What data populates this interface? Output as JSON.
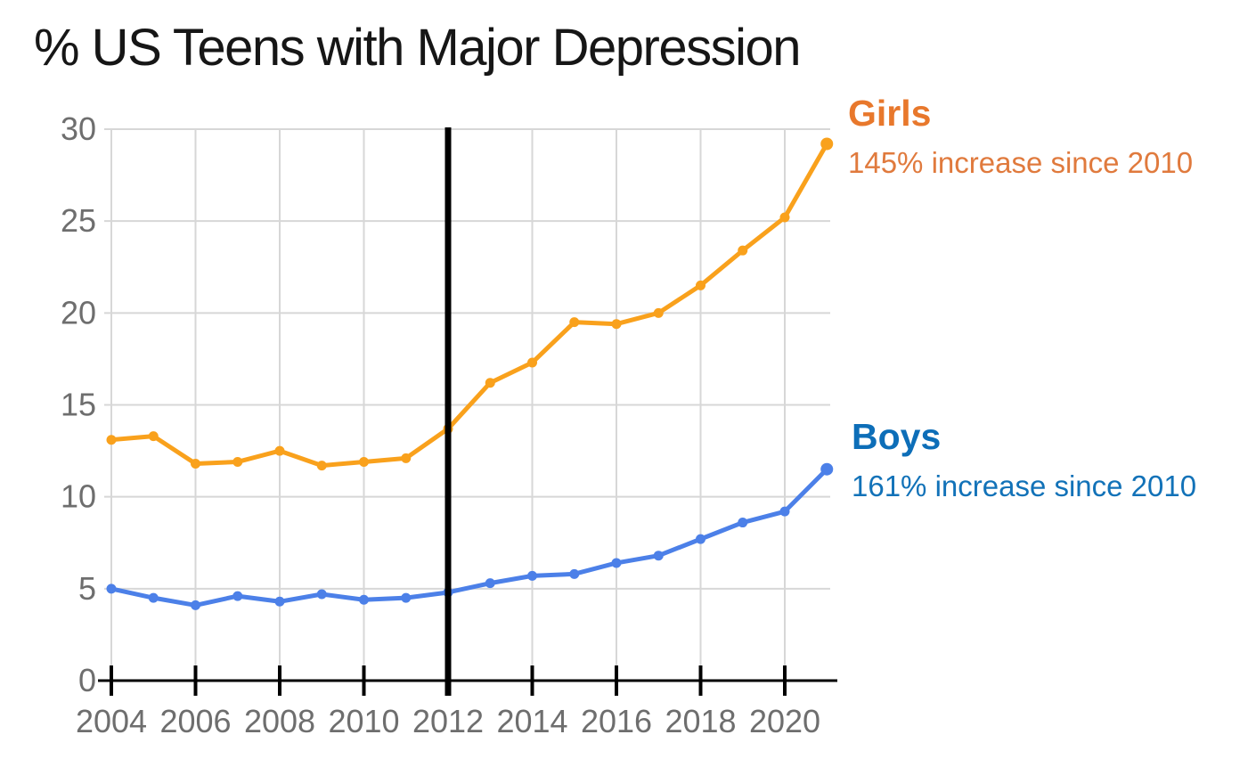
{
  "title": {
    "text": "% US Teens with Major Depression",
    "color": "#161616"
  },
  "annotations": {
    "girls": {
      "label": "Girls",
      "subtext": "145% increase since 2010",
      "label_color": "#e8782c",
      "subtext_color": "#e07a3d"
    },
    "boys": {
      "label": "Boys",
      "subtext": "161% increase since 2010",
      "label_color": "#0d6eb8",
      "subtext_color": "#1272b8"
    }
  },
  "chart_data": {
    "type": "line",
    "title": "% US Teens with Major Depression",
    "xlabel": "",
    "ylabel": "",
    "x": [
      2004,
      2005,
      2006,
      2007,
      2008,
      2009,
      2010,
      2011,
      2012,
      2013,
      2014,
      2015,
      2016,
      2017,
      2018,
      2019,
      2020,
      2021
    ],
    "series": [
      {
        "name": "Girls",
        "color": "#f9a11c",
        "values": [
          13.1,
          13.3,
          11.8,
          11.9,
          12.5,
          11.7,
          11.9,
          12.1,
          13.7,
          16.2,
          17.3,
          19.5,
          19.4,
          20.0,
          21.5,
          23.4,
          25.2,
          29.2
        ]
      },
      {
        "name": "Boys",
        "color": "#4c80e8",
        "values": [
          5.0,
          4.5,
          4.1,
          4.6,
          4.3,
          4.7,
          4.4,
          4.5,
          4.8,
          5.3,
          5.7,
          5.8,
          6.4,
          6.8,
          7.7,
          8.6,
          9.2,
          11.5
        ]
      }
    ],
    "ylim": [
      0,
      30
    ],
    "y_ticks": [
      0,
      5,
      10,
      15,
      20,
      25,
      30
    ],
    "x_tick_years": [
      2004,
      2006,
      2008,
      2010,
      2012,
      2014,
      2016,
      2018,
      2020
    ],
    "grid": true,
    "gridline_color": "#d7d7d7",
    "axis_label_color": "#6e6e6e",
    "axis_color": "#000000",
    "vline_year": 2012,
    "vline_color": "#000000",
    "legend_position": "right-outside"
  }
}
